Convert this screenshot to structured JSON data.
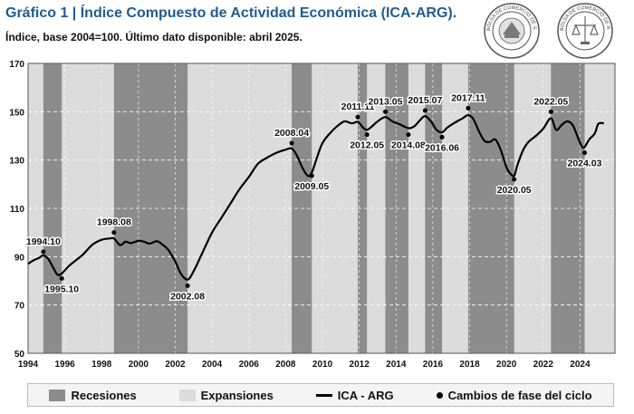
{
  "title": "Gráfico 1 | Índice Compuesto de Actividad Económica (ICA-ARG).",
  "subtitle": "Índice, base 2004=100. Último dato disponible: abril 2025.",
  "logos": {
    "santafe_text": "BOLSA DE COMERCIO DE SANTA FE",
    "rosario_text": "BOLSA DE COMERCIO DE ROSARIO"
  },
  "colors": {
    "recession": "#8c8c8c",
    "expansion": "#dcdcdc",
    "line": "#000000",
    "title": "#1f5c8f"
  },
  "legend": {
    "recessions": "Recesiones",
    "expansions": "Expansiones",
    "series": "ICA - ARG",
    "turning_points": "Cambios de fase del ciclo"
  },
  "chart_data": {
    "type": "line",
    "title": "",
    "xlabel": "",
    "ylabel": "",
    "xlim": [
      1994.0,
      2025.9
    ],
    "ylim": [
      50,
      170
    ],
    "y_ticks": [
      50,
      70,
      90,
      110,
      130,
      150,
      170
    ],
    "x_ticks": [
      1994,
      1996,
      1998,
      2000,
      2002,
      2004,
      2006,
      2008,
      2010,
      2012,
      2014,
      2016,
      2018,
      2020,
      2022,
      2024
    ],
    "grid": true,
    "legend_position": "bottom",
    "recessions": [
      [
        1994.83,
        1995.83
      ],
      [
        1998.67,
        2002.67
      ],
      [
        2008.33,
        2009.42
      ],
      [
        2011.92,
        2012.42
      ],
      [
        2013.42,
        2014.67
      ],
      [
        2015.58,
        2016.5
      ],
      [
        2017.92,
        2020.42
      ],
      [
        2022.42,
        2024.25
      ]
    ],
    "series": [
      {
        "name": "ICA - ARG",
        "x": [
          1994.0,
          1994.3,
          1994.6,
          1994.83,
          1995.1,
          1995.4,
          1995.6,
          1995.83,
          1996.2,
          1996.6,
          1997.0,
          1997.5,
          1998.0,
          1998.4,
          1998.67,
          1999.0,
          1999.3,
          1999.6,
          2000.0,
          2000.3,
          2000.6,
          2001.0,
          2001.3,
          2001.6,
          2002.0,
          2002.3,
          2002.67,
          2003.0,
          2003.5,
          2004.0,
          2004.5,
          2005.0,
          2005.5,
          2006.0,
          2006.5,
          2007.0,
          2007.5,
          2008.0,
          2008.33,
          2008.6,
          2008.9,
          2009.2,
          2009.42,
          2009.7,
          2010.0,
          2010.4,
          2010.8,
          2011.2,
          2011.6,
          2011.92,
          2012.2,
          2012.42,
          2012.7,
          2013.0,
          2013.42,
          2013.8,
          2014.2,
          2014.67,
          2015.0,
          2015.3,
          2015.58,
          2015.9,
          2016.2,
          2016.5,
          2016.8,
          2017.2,
          2017.6,
          2017.92,
          2018.2,
          2018.5,
          2018.8,
          2019.1,
          2019.4,
          2019.7,
          2020.0,
          2020.2,
          2020.42,
          2020.6,
          2020.9,
          2021.2,
          2021.6,
          2022.0,
          2022.42,
          2022.7,
          2023.0,
          2023.3,
          2023.6,
          2023.9,
          2024.1,
          2024.25,
          2024.5,
          2024.8,
          2025.0,
          2025.3
        ],
        "values": [
          87,
          88.5,
          89.5,
          90.5,
          89,
          85,
          82.5,
          83,
          86,
          88.5,
          91,
          95,
          97,
          97.5,
          97.5,
          94.8,
          96.2,
          95.6,
          96.6,
          96.2,
          95.4,
          96.4,
          95,
          93,
          88,
          83,
          80.5,
          84,
          92,
          100,
          106,
          112,
          118,
          123,
          128.5,
          131,
          133,
          134.3,
          134.8,
          132,
          127,
          123.5,
          124.8,
          131,
          137,
          141,
          144,
          146,
          145.2,
          145.8,
          143.5,
          142.5,
          144,
          146,
          147.8,
          146,
          144.8,
          143.2,
          144,
          146.5,
          148.2,
          146,
          142.5,
          141.5,
          143.5,
          145.5,
          147.2,
          148.6,
          147,
          142,
          138,
          137.5,
          138.5,
          134,
          127,
          124.5,
          123.5,
          128,
          134,
          137.5,
          140,
          143,
          147.3,
          142.5,
          144.5,
          146,
          144.5,
          139,
          135.6,
          135.4,
          138.5,
          141,
          145,
          145.2
        ]
      }
    ],
    "turning_points": [
      {
        "label": "1994.10",
        "x": 1994.83,
        "y": 92,
        "label_pos": "above"
      },
      {
        "label": "1995.10",
        "x": 1995.83,
        "y": 81,
        "label_pos": "below"
      },
      {
        "label": "1998.08",
        "x": 1998.67,
        "y": 100,
        "label_pos": "above"
      },
      {
        "label": "2002.08",
        "x": 2002.67,
        "y": 78,
        "label_pos": "below"
      },
      {
        "label": "2008.04",
        "x": 2008.33,
        "y": 137,
        "label_pos": "above"
      },
      {
        "label": "2009.05",
        "x": 2009.42,
        "y": 123.5,
        "label_pos": "below"
      },
      {
        "label": "2011.11",
        "x": 2011.92,
        "y": 147.8,
        "label_pos": "above"
      },
      {
        "label": "2012.05",
        "x": 2012.42,
        "y": 140.5,
        "label_pos": "below"
      },
      {
        "label": "2013.05",
        "x": 2013.42,
        "y": 150,
        "label_pos": "above"
      },
      {
        "label": "2014.08",
        "x": 2014.67,
        "y": 140.5,
        "label_pos": "below"
      },
      {
        "label": "2015.07",
        "x": 2015.58,
        "y": 150.5,
        "label_pos": "above"
      },
      {
        "label": "2016.06",
        "x": 2016.5,
        "y": 139.5,
        "label_pos": "below"
      },
      {
        "label": "2017.11",
        "x": 2017.92,
        "y": 151.5,
        "label_pos": "above"
      },
      {
        "label": "2020.05",
        "x": 2020.42,
        "y": 122,
        "label_pos": "below"
      },
      {
        "label": "2022.05",
        "x": 2022.42,
        "y": 150,
        "label_pos": "above"
      },
      {
        "label": "2024.03",
        "x": 2024.25,
        "y": 133,
        "label_pos": "below"
      }
    ]
  }
}
